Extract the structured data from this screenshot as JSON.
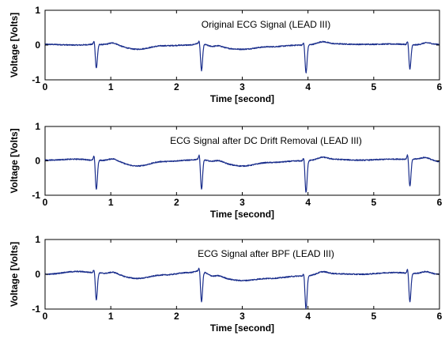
{
  "chart_data": [
    {
      "type": "line",
      "title": "Original ECG Signal (LEAD III)",
      "xlabel": "Time [second]",
      "ylabel": "Voltage [Volts]",
      "xlim": [
        0,
        6
      ],
      "ylim": [
        -1,
        1
      ],
      "xticks": [
        "0",
        "1",
        "2",
        "3",
        "4",
        "5",
        "6"
      ],
      "yticks": [
        "1",
        "0",
        "-1"
      ],
      "grid": false,
      "line_color": "#1a2e8c",
      "baseline_points": [
        [
          0,
          0.02
        ],
        [
          0.5,
          0.0
        ],
        [
          0.75,
          0.02
        ],
        [
          1.0,
          0.0
        ],
        [
          1.4,
          -0.12
        ],
        [
          1.8,
          -0.02
        ],
        [
          2.2,
          0.0
        ],
        [
          2.35,
          0.05
        ],
        [
          2.6,
          -0.08
        ],
        [
          3.0,
          -0.12
        ],
        [
          3.4,
          -0.05
        ],
        [
          3.9,
          0.0
        ],
        [
          4.3,
          0.04
        ],
        [
          4.8,
          0.02
        ],
        [
          5.3,
          0.03
        ],
        [
          5.7,
          0.0
        ],
        [
          6.0,
          0.02
        ]
      ],
      "beats": [
        {
          "x": 0.78,
          "r": 0.15,
          "s": -0.68
        },
        {
          "x": 2.38,
          "r": 0.12,
          "s": -0.78
        },
        {
          "x": 3.97,
          "r": 0.12,
          "s": -0.8
        },
        {
          "x": 5.55,
          "r": 0.15,
          "s": -0.7
        }
      ]
    },
    {
      "type": "line",
      "title": "ECG Signal after DC Drift Removal (LEAD III)",
      "xlabel": "Time [second]",
      "ylabel": "Voltage [Volts]",
      "xlim": [
        0,
        6
      ],
      "ylim": [
        -1,
        1
      ],
      "xticks": [
        "0",
        "1",
        "2",
        "3",
        "4",
        "5",
        "6"
      ],
      "yticks": [
        "1",
        "0",
        "-1"
      ],
      "grid": false,
      "line_color": "#1a2e8c",
      "baseline_points": [
        [
          0,
          0.02
        ],
        [
          0.5,
          0.05
        ],
        [
          0.75,
          0.02
        ],
        [
          1.0,
          0.0
        ],
        [
          1.4,
          -0.15
        ],
        [
          1.8,
          -0.02
        ],
        [
          2.2,
          0.02
        ],
        [
          2.35,
          0.05
        ],
        [
          2.6,
          -0.05
        ],
        [
          3.0,
          -0.15
        ],
        [
          3.4,
          -0.05
        ],
        [
          3.9,
          0.0
        ],
        [
          4.3,
          0.05
        ],
        [
          4.8,
          0.02
        ],
        [
          5.3,
          0.05
        ],
        [
          5.7,
          0.05
        ],
        [
          6.0,
          -0.02
        ]
      ],
      "beats": [
        {
          "x": 0.78,
          "r": 0.2,
          "s": -0.85
        },
        {
          "x": 2.38,
          "r": 0.2,
          "s": -0.88
        },
        {
          "x": 3.97,
          "r": 0.15,
          "s": -0.92
        },
        {
          "x": 5.55,
          "r": 0.2,
          "s": -0.8
        }
      ]
    },
    {
      "type": "line",
      "title": "ECG Signal after BPF (LEAD III)",
      "xlabel": "Time [second]",
      "ylabel": "Voltage [Volts]",
      "xlim": [
        0,
        6
      ],
      "ylim": [
        -1,
        1
      ],
      "xticks": [
        "0",
        "1",
        "2",
        "3",
        "4",
        "5",
        "6"
      ],
      "yticks": [
        "1",
        "0",
        "-1"
      ],
      "grid": false,
      "line_color": "#1a2e8c",
      "baseline_points": [
        [
          0,
          0.0
        ],
        [
          0.5,
          0.08
        ],
        [
          0.75,
          0.05
        ],
        [
          1.0,
          0.0
        ],
        [
          1.4,
          -0.12
        ],
        [
          1.8,
          -0.02
        ],
        [
          2.2,
          0.05
        ],
        [
          2.35,
          0.1
        ],
        [
          2.6,
          -0.1
        ],
        [
          3.0,
          -0.18
        ],
        [
          3.4,
          -0.12
        ],
        [
          3.9,
          -0.05
        ],
        [
          4.3,
          0.02
        ],
        [
          4.8,
          0.0
        ],
        [
          5.3,
          0.05
        ],
        [
          5.7,
          0.02
        ],
        [
          6.0,
          0.0
        ]
      ],
      "beats": [
        {
          "x": 0.78,
          "r": 0.15,
          "s": -0.78
        },
        {
          "x": 2.38,
          "r": 0.15,
          "s": -0.88
        },
        {
          "x": 3.97,
          "r": 0.12,
          "s": -0.95
        },
        {
          "x": 5.55,
          "r": 0.18,
          "s": -0.82
        }
      ]
    }
  ]
}
